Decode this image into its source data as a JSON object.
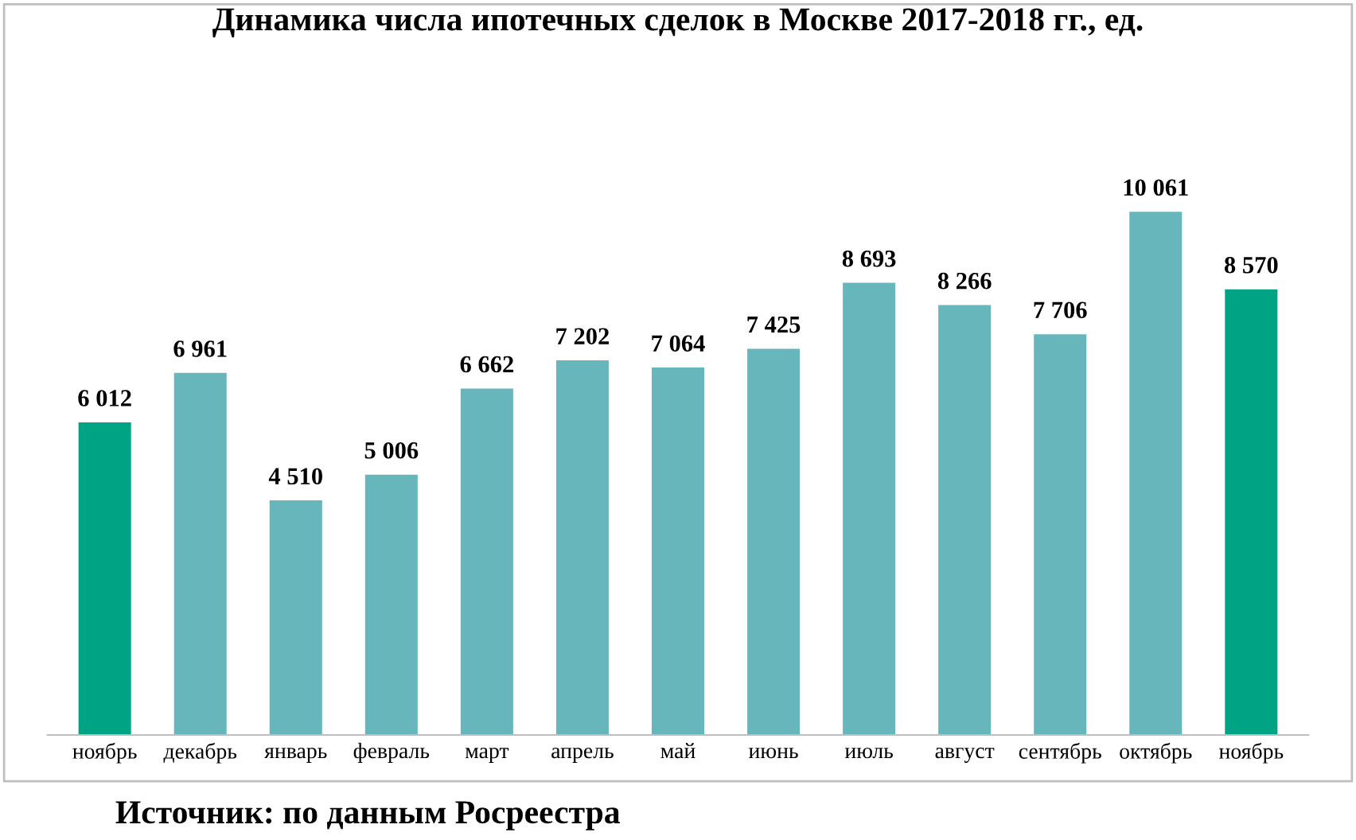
{
  "chart_data": {
    "type": "bar",
    "title": "Динамика числа ипотечных сделок в Москве 2017-2018 гг., ед.",
    "categories": [
      "ноябрь",
      "декабрь",
      "январь",
      "февраль",
      "март",
      "апрель",
      "май",
      "июнь",
      "июль",
      "август",
      "сентябрь",
      "октябрь",
      "ноябрь"
    ],
    "values": [
      6012,
      6961,
      4510,
      5006,
      6662,
      7202,
      7064,
      7425,
      8693,
      8266,
      7706,
      10061,
      8570
    ],
    "value_labels": [
      "6 012",
      "6 961",
      "4 510",
      "5 006",
      "6 662",
      "7 202",
      "7 064",
      "7 425",
      "8 693",
      "8 266",
      "7 706",
      "10 061",
      "8 570"
    ],
    "colors": [
      "#00a383",
      "#66b6bc",
      "#66b6bc",
      "#66b6bc",
      "#66b6bc",
      "#66b6bc",
      "#66b6bc",
      "#66b6bc",
      "#66b6bc",
      "#66b6bc",
      "#66b6bc",
      "#66b6bc",
      "#00a383"
    ],
    "annotations": [
      "Источник: по данным Росреестра"
    ],
    "grid": false,
    "legend": false
  }
}
